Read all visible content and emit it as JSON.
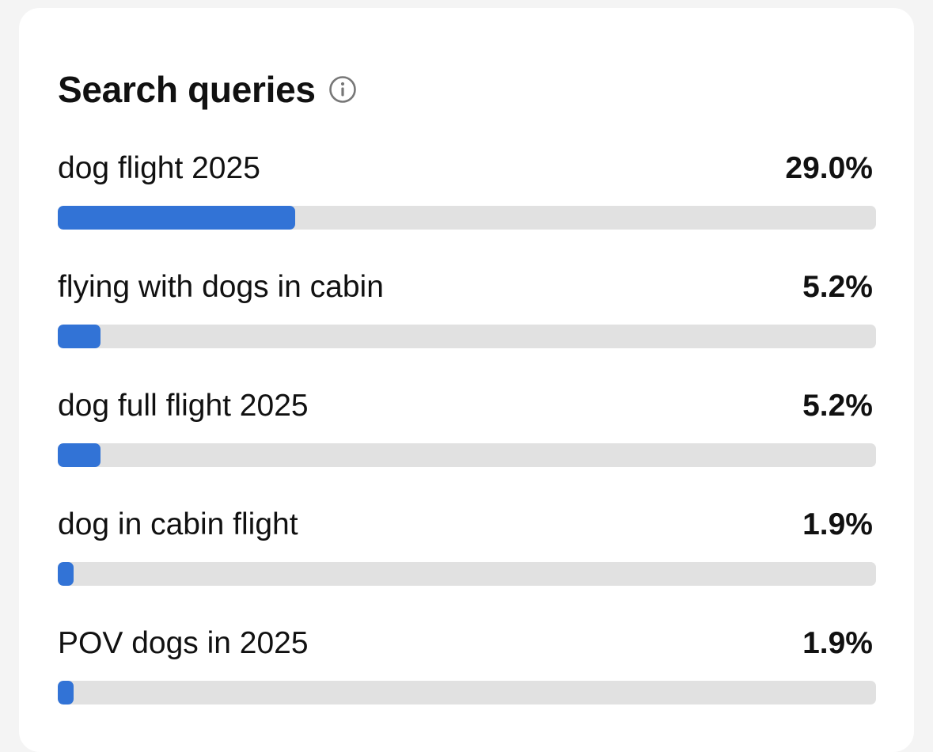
{
  "card": {
    "title": "Search queries",
    "info_icon": "info-circle-icon"
  },
  "colors": {
    "bar_fill": "#3273d6",
    "bar_track": "#e1e1e1"
  },
  "queries": [
    {
      "label": "dog flight 2025",
      "percent_text": "29.0%",
      "fill_fraction": 0.29
    },
    {
      "label": "flying with dogs in cabin",
      "percent_text": "5.2%",
      "fill_fraction": 0.052
    },
    {
      "label": "dog full flight 2025",
      "percent_text": "5.2%",
      "fill_fraction": 0.052
    },
    {
      "label": "dog in cabin flight",
      "percent_text": "1.9%",
      "fill_fraction": 0.019
    },
    {
      "label": "POV dogs in 2025",
      "percent_text": "1.9%",
      "fill_fraction": 0.019
    }
  ]
}
